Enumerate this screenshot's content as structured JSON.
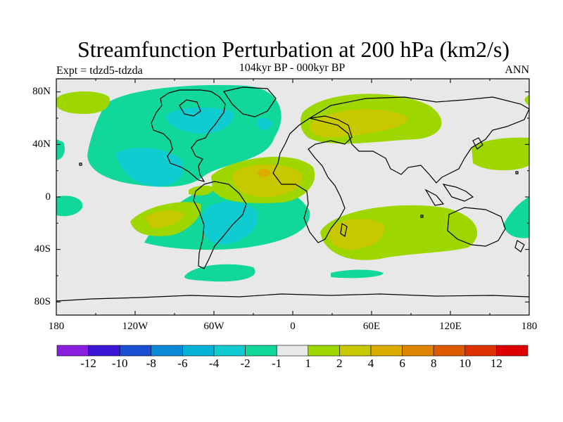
{
  "title": "Streamfunction Perturbation at 200 hPa (km2/s)",
  "subtitle": "104kyr BP - 000kyr BP",
  "experiment": "Expt = tdzd5-tdzda",
  "season": "ANN",
  "lat_ticks": [
    "80N",
    "40N",
    "0",
    "40S",
    "80S"
  ],
  "lon_ticks": [
    "180",
    "120W",
    "60W",
    "0",
    "60E",
    "120E",
    "180"
  ],
  "colorbar": {
    "labels": [
      "-12",
      "-10",
      "-8",
      "-6",
      "-4",
      "-2",
      "-1",
      "1",
      "2",
      "4",
      "6",
      "8",
      "10",
      "12"
    ],
    "colors": [
      "#8a1fe0",
      "#3a16d6",
      "#1a4fd4",
      "#0a8ad8",
      "#07b2d8",
      "#10ccd0",
      "#12d79a",
      "#e8e8e8",
      "#9ed600",
      "#c8c800",
      "#dcac00",
      "#de8400",
      "#de5a00",
      "#de3000",
      "#dc0000"
    ]
  },
  "colors": {
    "land_outline": "#000000",
    "background": "#e8e8e8",
    "neg_light": "#12d79a",
    "neg_mid": "#10ccd0",
    "pos_light": "#9ed600",
    "pos_mid": "#c8c800",
    "pos_high": "#dcac00"
  }
}
